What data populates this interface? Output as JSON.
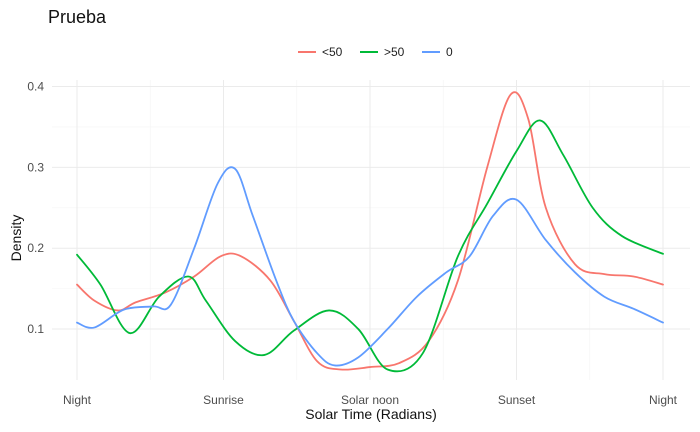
{
  "chart_data": {
    "type": "line",
    "title": "Prueba",
    "xlabel": "Solar Time (Radians)",
    "ylabel": "Density",
    "x_ticks": [
      "Night",
      "Sunrise",
      "Solar noon",
      "Sunset",
      "Night"
    ],
    "x_tick_positions": [
      0,
      0.25,
      0.5,
      0.75,
      1.0
    ],
    "xlim": [
      0,
      1
    ],
    "y_ticks": [
      "0.1",
      "0.2",
      "0.3",
      "0.4"
    ],
    "y_tick_values": [
      0.1,
      0.2,
      0.3,
      0.4
    ],
    "ylim": [
      0.037,
      0.408
    ],
    "grid": true,
    "legend": "top",
    "series": [
      {
        "name": "<50",
        "color": "#F8766D",
        "points": [
          [
            0.0,
            0.155
          ],
          [
            0.03,
            0.135
          ],
          [
            0.07,
            0.123
          ],
          [
            0.1,
            0.133
          ],
          [
            0.15,
            0.145
          ],
          [
            0.2,
            0.165
          ],
          [
            0.245,
            0.19
          ],
          [
            0.28,
            0.19
          ],
          [
            0.33,
            0.16
          ],
          [
            0.37,
            0.11
          ],
          [
            0.41,
            0.06
          ],
          [
            0.45,
            0.05
          ],
          [
            0.5,
            0.053
          ],
          [
            0.55,
            0.058
          ],
          [
            0.6,
            0.085
          ],
          [
            0.65,
            0.16
          ],
          [
            0.7,
            0.3
          ],
          [
            0.74,
            0.39
          ],
          [
            0.77,
            0.36
          ],
          [
            0.8,
            0.25
          ],
          [
            0.85,
            0.18
          ],
          [
            0.9,
            0.168
          ],
          [
            0.95,
            0.165
          ],
          [
            1.0,
            0.155
          ]
        ]
      },
      {
        "name": ">50",
        "color": "#00BA38",
        "points": [
          [
            0.0,
            0.192
          ],
          [
            0.04,
            0.155
          ],
          [
            0.09,
            0.095
          ],
          [
            0.14,
            0.14
          ],
          [
            0.19,
            0.165
          ],
          [
            0.22,
            0.135
          ],
          [
            0.27,
            0.085
          ],
          [
            0.32,
            0.068
          ],
          [
            0.37,
            0.098
          ],
          [
            0.43,
            0.123
          ],
          [
            0.48,
            0.1
          ],
          [
            0.53,
            0.05
          ],
          [
            0.59,
            0.07
          ],
          [
            0.65,
            0.19
          ],
          [
            0.7,
            0.255
          ],
          [
            0.75,
            0.32
          ],
          [
            0.79,
            0.358
          ],
          [
            0.83,
            0.315
          ],
          [
            0.88,
            0.25
          ],
          [
            0.93,
            0.215
          ],
          [
            1.0,
            0.193
          ]
        ]
      },
      {
        "name": "0",
        "color": "#619CFF",
        "points": [
          [
            0.0,
            0.108
          ],
          [
            0.03,
            0.102
          ],
          [
            0.08,
            0.124
          ],
          [
            0.13,
            0.128
          ],
          [
            0.16,
            0.13
          ],
          [
            0.2,
            0.2
          ],
          [
            0.24,
            0.28
          ],
          [
            0.27,
            0.298
          ],
          [
            0.3,
            0.24
          ],
          [
            0.34,
            0.16
          ],
          [
            0.37,
            0.11
          ],
          [
            0.41,
            0.07
          ],
          [
            0.44,
            0.055
          ],
          [
            0.48,
            0.065
          ],
          [
            0.53,
            0.1
          ],
          [
            0.58,
            0.14
          ],
          [
            0.63,
            0.17
          ],
          [
            0.67,
            0.19
          ],
          [
            0.71,
            0.24
          ],
          [
            0.75,
            0.26
          ],
          [
            0.8,
            0.21
          ],
          [
            0.85,
            0.17
          ],
          [
            0.9,
            0.14
          ],
          [
            0.95,
            0.125
          ],
          [
            1.0,
            0.108
          ]
        ]
      }
    ]
  }
}
